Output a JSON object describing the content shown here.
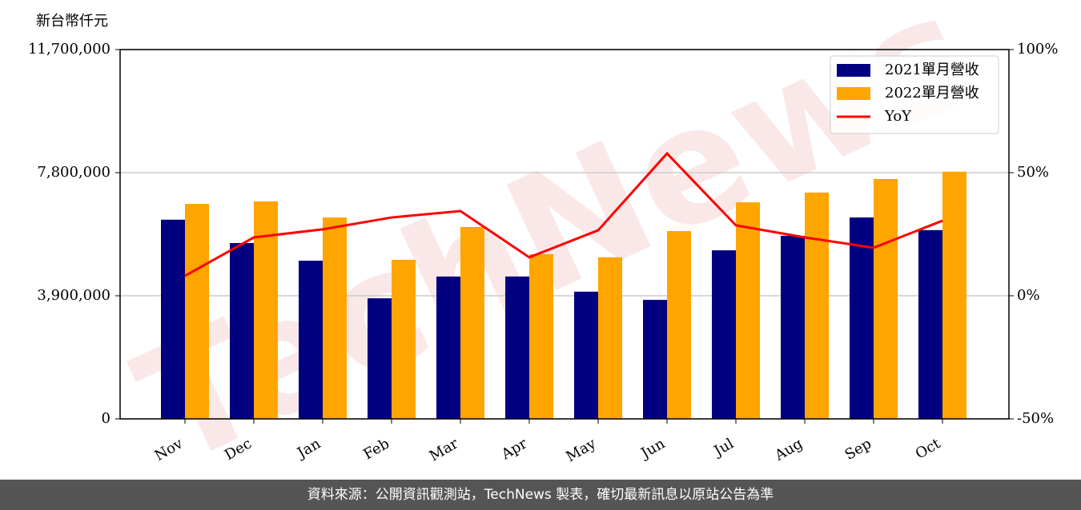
{
  "chart_data": {
    "type": "bar",
    "y_unit_label": "新台幣仟元",
    "categories": [
      "Nov",
      "Dec",
      "Jan",
      "Feb",
      "Mar",
      "Apr",
      "May",
      "Jun",
      "Jul",
      "Aug",
      "Sep",
      "Oct"
    ],
    "series": [
      {
        "name": "2021單月營收",
        "color": "#000080",
        "values": [
          6310000,
          5570000,
          5010000,
          3820000,
          4510000,
          4510000,
          4030000,
          3770000,
          5340000,
          5800000,
          6380000,
          5980000
        ]
      },
      {
        "name": "2022單月營收",
        "color": "#ffa500",
        "values": [
          6810000,
          6890000,
          6380000,
          5040000,
          6080000,
          5220000,
          5120000,
          5950000,
          6860000,
          7170000,
          7600000,
          7830000
        ]
      },
      {
        "name": "YoY",
        "type": "line",
        "axis": "y2",
        "color": "#ff0000",
        "values": [
          8.1,
          23.7,
          27.0,
          31.8,
          34.4,
          15.6,
          26.6,
          57.8,
          28.6,
          23.7,
          19.5,
          30.5
        ]
      }
    ],
    "ylim": [
      0,
      11700000
    ],
    "yticks": [
      0,
      {
        "value": 3900000,
        "label": "3,900,000"
      },
      {
        "value": 7800000,
        "label": "7,800,000"
      },
      {
        "value": 11700000,
        "label": "11,700,000"
      }
    ],
    "y2lim": [
      -50,
      100
    ],
    "y2ticks": [
      {
        "value": -50,
        "label": "-50%"
      },
      {
        "value": 0,
        "label": "0%"
      },
      {
        "value": 50,
        "label": "50%"
      },
      {
        "value": 100,
        "label": "100%"
      }
    ],
    "grid": true,
    "legend": "upper right",
    "watermark": "TechNews",
    "footer": "資料來源：公開資訊觀測站，TechNews 製表，確切最新訊息以原站公告為準"
  }
}
